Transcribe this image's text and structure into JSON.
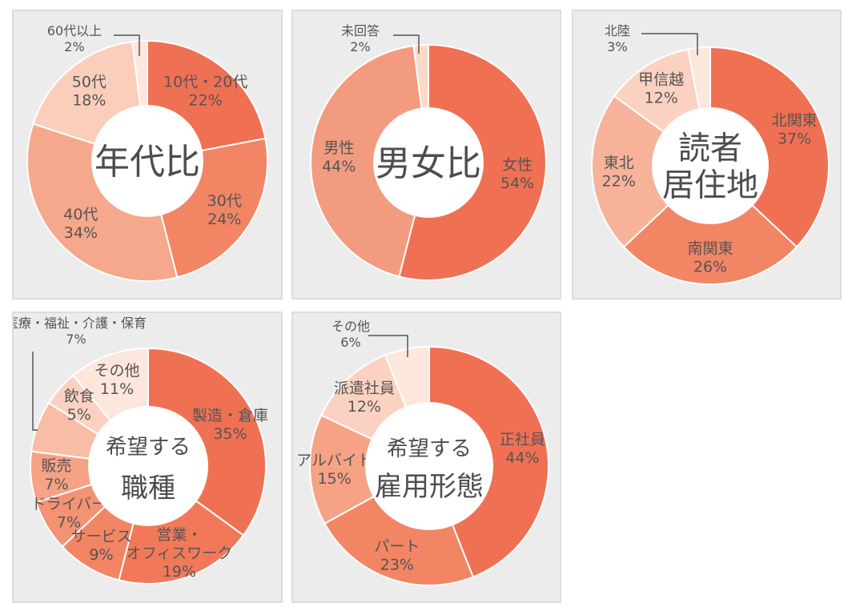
{
  "colors": {
    "panel_bg": "#ececec",
    "panel_border": "#dcdcdc",
    "slice_text_on_dark": "#ffffff",
    "slice_text_on_light": "#555555",
    "center_text": "#4d4d4d",
    "leader_line": "#555555"
  },
  "chart_data": [
    {
      "type": "pie",
      "style": "donut",
      "title": "年代比",
      "slices": [
        {
          "name": "10代・20代",
          "value": 22,
          "label": "22%",
          "color": "#f07053",
          "text": "light"
        },
        {
          "name": "30代",
          "value": 24,
          "label": "24%",
          "color": "#f28564",
          "text": "light"
        },
        {
          "name": "40代",
          "value": 34,
          "label": "34%",
          "color": "#f5a88b",
          "text": "dark"
        },
        {
          "name": "50代",
          "value": 18,
          "label": "18%",
          "color": "#fbcebc",
          "text": "dark"
        },
        {
          "name": "60代以上",
          "value": 2,
          "label": "2%",
          "color": "#fde6dc",
          "text": "dark"
        }
      ]
    },
    {
      "type": "pie",
      "style": "donut",
      "title": "男女比",
      "slices": [
        {
          "name": "女性",
          "value": 54,
          "label": "54%",
          "color": "#f07053",
          "text": "light"
        },
        {
          "name": "男性",
          "value": 44,
          "label": "44%",
          "color": "#f39b7e",
          "text": "light"
        },
        {
          "name": "未回答",
          "value": 2,
          "label": "2%",
          "color": "#fcd9c9",
          "text": "dark"
        }
      ]
    },
    {
      "type": "pie",
      "style": "donut",
      "title": "読者\n居住地",
      "slices": [
        {
          "name": "北関東",
          "value": 37,
          "label": "37%",
          "color": "#f07053",
          "text": "light"
        },
        {
          "name": "南関東",
          "value": 26,
          "label": "26%",
          "color": "#f28564",
          "text": "light"
        },
        {
          "name": "東北",
          "value": 22,
          "label": "22%",
          "color": "#f7b29a",
          "text": "light"
        },
        {
          "name": "甲信越",
          "value": 12,
          "label": "12%",
          "color": "#fbd2c1",
          "text": "dark"
        },
        {
          "name": "北陸",
          "value": 3,
          "label": "3%",
          "color": "#fde6dc",
          "text": "dark"
        }
      ]
    },
    {
      "type": "pie",
      "style": "donut",
      "title": "希望する\n職種",
      "slices": [
        {
          "name": "製造・倉庫",
          "value": 35,
          "label": "35%",
          "color": "#f07053",
          "text": "light"
        },
        {
          "name": "営業・\nオフィスワーク",
          "value": 19,
          "label": "19%",
          "color": "#f1795a",
          "text": "light"
        },
        {
          "name": "サービス",
          "value": 9,
          "label": "9%",
          "color": "#f28564",
          "text": "light"
        },
        {
          "name": "ドライバー",
          "value": 7,
          "label": "7%",
          "color": "#f49274",
          "text": "light"
        },
        {
          "name": "販売",
          "value": 7,
          "label": "7%",
          "color": "#f6a284",
          "text": "dark"
        },
        {
          "name": "医療・福祉・介護・保育",
          "value": 7,
          "label": "7%",
          "color": "#f9bca5",
          "text": "dark"
        },
        {
          "name": "飲食",
          "value": 5,
          "label": "5%",
          "color": "#fbd2c1",
          "text": "dark"
        },
        {
          "name": "その他",
          "value": 11,
          "label": "11%",
          "color": "#fde6dc",
          "text": "dark"
        }
      ]
    },
    {
      "type": "pie",
      "style": "donut",
      "title": "希望する\n雇用形態",
      "slices": [
        {
          "name": "正社員",
          "value": 44,
          "label": "44%",
          "color": "#f07053",
          "text": "light"
        },
        {
          "name": "パート",
          "value": 23,
          "label": "23%",
          "color": "#f28564",
          "text": "light"
        },
        {
          "name": "アルバイト",
          "value": 15,
          "label": "15%",
          "color": "#f6a284",
          "text": "light"
        },
        {
          "name": "派遣社員",
          "value": 12,
          "label": "12%",
          "color": "#fbd2c1",
          "text": "dark"
        },
        {
          "name": "その他",
          "value": 6,
          "label": "6%",
          "color": "#fde6dc",
          "text": "dark"
        }
      ]
    }
  ]
}
